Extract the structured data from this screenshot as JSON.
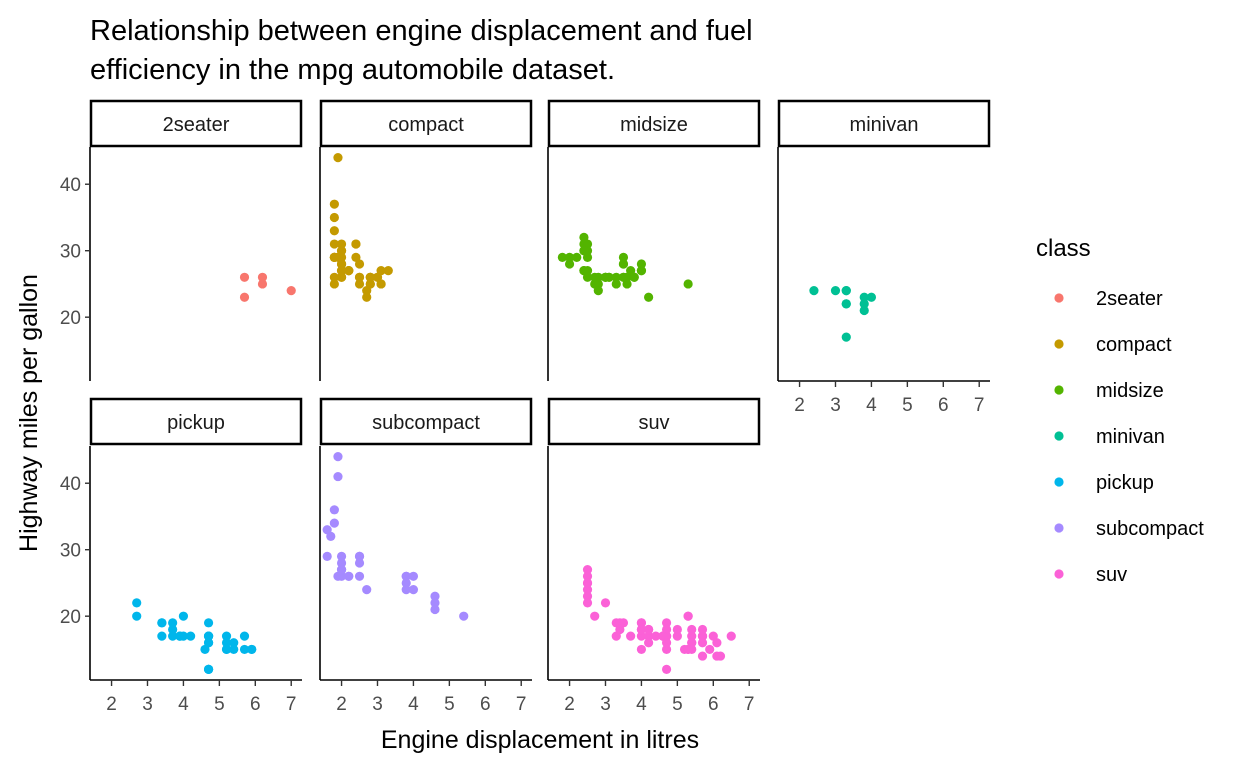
{
  "chart_data": {
    "type": "scatter",
    "title_lines": [
      "Relationship between engine displacement and fuel",
      "efficiency in the mpg automobile dataset."
    ],
    "xlabel": "Engine displacement in litres",
    "ylabel": "Highway miles per gallon",
    "xlim": [
      1.4,
      7.3
    ],
    "ylim": [
      10.4,
      45.6
    ],
    "x_ticks": [
      2,
      3,
      4,
      5,
      6,
      7
    ],
    "y_ticks": [
      20,
      30,
      40
    ],
    "legend": {
      "title": "class",
      "position": "right"
    },
    "facets": [
      {
        "name": "2seater",
        "color": "#F8766D",
        "points": [
          [
            5.7,
            26
          ],
          [
            5.7,
            23
          ],
          [
            6.2,
            26
          ],
          [
            6.2,
            25
          ],
          [
            7.0,
            24
          ]
        ]
      },
      {
        "name": "compact",
        "color": "#C49A00",
        "points": [
          [
            1.8,
            29
          ],
          [
            1.8,
            29
          ],
          [
            2.0,
            31
          ],
          [
            2.0,
            30
          ],
          [
            2.8,
            26
          ],
          [
            2.8,
            26
          ],
          [
            3.1,
            27
          ],
          [
            1.8,
            26
          ],
          [
            1.8,
            25
          ],
          [
            2.0,
            28
          ],
          [
            2.0,
            28
          ],
          [
            2.8,
            25
          ],
          [
            2.8,
            25
          ],
          [
            3.1,
            25
          ],
          [
            3.1,
            25
          ],
          [
            2.2,
            27
          ],
          [
            2.2,
            27
          ],
          [
            2.4,
            31
          ],
          [
            2.4,
            31
          ],
          [
            3.0,
            26
          ],
          [
            3.0,
            26
          ],
          [
            3.3,
            27
          ],
          [
            1.8,
            29
          ],
          [
            1.8,
            29
          ],
          [
            2.0,
            26
          ],
          [
            2.0,
            26
          ],
          [
            2.0,
            30
          ],
          [
            2.0,
            27
          ],
          [
            2.5,
            26
          ],
          [
            2.5,
            25
          ],
          [
            2.5,
            26
          ],
          [
            2.5,
            28
          ],
          [
            1.9,
            44
          ],
          [
            1.8,
            37
          ],
          [
            1.8,
            35
          ],
          [
            1.8,
            33
          ],
          [
            2.0,
            29
          ],
          [
            2.0,
            28
          ],
          [
            2.0,
            27
          ],
          [
            2.7,
            24
          ],
          [
            2.7,
            23
          ],
          [
            2.2,
            27
          ],
          [
            2.4,
            29
          ],
          [
            1.8,
            31
          ],
          [
            2.8,
            26
          ],
          [
            1.9,
            29
          ]
        ]
      },
      {
        "name": "midsize",
        "color": "#53B400",
        "points": [
          [
            2.8,
            26
          ],
          [
            2.8,
            25
          ],
          [
            3.1,
            26
          ],
          [
            4.2,
            23
          ],
          [
            2.4,
            27
          ],
          [
            2.4,
            30
          ],
          [
            3.1,
            26
          ],
          [
            3.5,
            29
          ],
          [
            3.6,
            26
          ],
          [
            2.4,
            31
          ],
          [
            2.4,
            32
          ],
          [
            2.5,
            31
          ],
          [
            2.5,
            30
          ],
          [
            3.3,
            26
          ],
          [
            3.3,
            25
          ],
          [
            2.7,
            26
          ],
          [
            2.7,
            25
          ],
          [
            3.0,
            26
          ],
          [
            3.0,
            26
          ],
          [
            3.5,
            28
          ],
          [
            3.8,
            26
          ],
          [
            3.8,
            26
          ],
          [
            4.0,
            27
          ],
          [
            2.5,
            29
          ],
          [
            2.5,
            27
          ],
          [
            2.5,
            26
          ],
          [
            3.5,
            26
          ],
          [
            3.5,
            28
          ],
          [
            3.0,
            26
          ],
          [
            1.8,
            29
          ],
          [
            2.0,
            28
          ],
          [
            2.4,
            27
          ],
          [
            5.3,
            25
          ],
          [
            2.8,
            24
          ],
          [
            3.5,
            26
          ],
          [
            3.7,
            27
          ],
          [
            2.0,
            29
          ],
          [
            2.2,
            29
          ],
          [
            2.4,
            30
          ],
          [
            4.0,
            27
          ],
          [
            4.0,
            28
          ],
          [
            3.6,
            25
          ]
        ]
      },
      {
        "name": "minivan",
        "color": "#00C094",
        "points": [
          [
            2.4,
            24
          ],
          [
            3.0,
            24
          ],
          [
            3.3,
            22
          ],
          [
            3.3,
            22
          ],
          [
            3.3,
            24
          ],
          [
            3.3,
            24
          ],
          [
            3.3,
            17
          ],
          [
            3.8,
            22
          ],
          [
            3.8,
            21
          ],
          [
            3.8,
            23
          ],
          [
            4.0,
            23
          ]
        ]
      },
      {
        "name": "pickup",
        "color": "#00B6EB",
        "points": [
          [
            2.7,
            20
          ],
          [
            2.7,
            22
          ],
          [
            3.4,
            17
          ],
          [
            3.4,
            19
          ],
          [
            4.0,
            20
          ],
          [
            4.0,
            17
          ],
          [
            4.7,
            19
          ],
          [
            4.7,
            17
          ],
          [
            4.7,
            12
          ],
          [
            5.2,
            17
          ],
          [
            5.2,
            15
          ],
          [
            5.7,
            17
          ],
          [
            5.9,
            15
          ],
          [
            4.7,
            12
          ],
          [
            4.7,
            17
          ],
          [
            4.7,
            16
          ],
          [
            5.2,
            15
          ],
          [
            5.9,
            15
          ],
          [
            3.7,
            19
          ],
          [
            3.7,
            18
          ],
          [
            3.9,
            17
          ],
          [
            4.7,
            17
          ],
          [
            4.7,
            12
          ],
          [
            5.2,
            16
          ],
          [
            5.7,
            15
          ],
          [
            3.9,
            17
          ],
          [
            4.2,
            17
          ],
          [
            4.7,
            16
          ],
          [
            3.4,
            19
          ],
          [
            4.6,
            15
          ],
          [
            5.4,
            16
          ],
          [
            5.4,
            15
          ],
          [
            3.7,
            17
          ]
        ]
      },
      {
        "name": "subcompact",
        "color": "#A58AFF",
        "points": [
          [
            1.6,
            29
          ],
          [
            1.6,
            33
          ],
          [
            1.7,
            32
          ],
          [
            1.8,
            34
          ],
          [
            1.8,
            36
          ],
          [
            1.9,
            41
          ],
          [
            1.9,
            44
          ],
          [
            2.0,
            29
          ],
          [
            2.0,
            26
          ],
          [
            2.0,
            27
          ],
          [
            2.2,
            26
          ],
          [
            2.5,
            29
          ],
          [
            2.5,
            29
          ],
          [
            2.5,
            28
          ],
          [
            2.7,
            24
          ],
          [
            3.8,
            26
          ],
          [
            3.8,
            25
          ],
          [
            3.8,
            26
          ],
          [
            3.8,
            24
          ],
          [
            4.0,
            26
          ],
          [
            4.0,
            24
          ],
          [
            4.6,
            23
          ],
          [
            4.6,
            22
          ],
          [
            4.6,
            21
          ],
          [
            5.4,
            20
          ],
          [
            2.0,
            28
          ],
          [
            2.2,
            26
          ],
          [
            2.5,
            26
          ],
          [
            1.9,
            26
          ],
          [
            2.0,
            27
          ]
        ]
      },
      {
        "name": "suv",
        "color": "#F8766D",
        "color_override": "#FB61D7",
        "points": [
          [
            5.3,
            20
          ],
          [
            5.3,
            15
          ],
          [
            5.3,
            20
          ],
          [
            5.7,
            17
          ],
          [
            6.0,
            17
          ],
          [
            5.7,
            17
          ],
          [
            6.5,
            17
          ],
          [
            4.2,
            16
          ],
          [
            4.7,
            12
          ],
          [
            4.7,
            17
          ],
          [
            5.2,
            15
          ],
          [
            5.7,
            17
          ],
          [
            5.9,
            15
          ],
          [
            4.0,
            17
          ],
          [
            4.0,
            18
          ],
          [
            4.7,
            17
          ],
          [
            4.7,
            19
          ],
          [
            5.7,
            18
          ],
          [
            5.4,
            16
          ],
          [
            5.4,
            17
          ],
          [
            4.0,
            19
          ],
          [
            4.0,
            18
          ],
          [
            4.6,
            17
          ],
          [
            5.0,
            17
          ],
          [
            4.2,
            17
          ],
          [
            4.2,
            18
          ],
          [
            4.4,
            17
          ],
          [
            4.6,
            17
          ],
          [
            5.4,
            15
          ],
          [
            5.4,
            16
          ],
          [
            2.5,
            26
          ],
          [
            2.5,
            25
          ],
          [
            2.5,
            23
          ],
          [
            2.5,
            22
          ],
          [
            2.5,
            24
          ],
          [
            2.5,
            27
          ],
          [
            2.5,
            25
          ],
          [
            2.7,
            20
          ],
          [
            3.0,
            22
          ],
          [
            3.3,
            17
          ],
          [
            3.3,
            19
          ],
          [
            3.5,
            19
          ],
          [
            4.0,
            19
          ],
          [
            4.2,
            18
          ],
          [
            4.7,
            15
          ],
          [
            5.3,
            15
          ],
          [
            5.7,
            14
          ],
          [
            6.1,
            14
          ],
          [
            6.2,
            14
          ],
          [
            4.7,
            18
          ],
          [
            5.0,
            18
          ],
          [
            5.7,
            16
          ],
          [
            4.6,
            17
          ],
          [
            3.7,
            17
          ],
          [
            4.7,
            16
          ],
          [
            5.4,
            18
          ],
          [
            6.1,
            16
          ],
          [
            4.0,
            15
          ],
          [
            3.4,
            18
          ],
          [
            3.4,
            19
          ]
        ]
      }
    ]
  }
}
